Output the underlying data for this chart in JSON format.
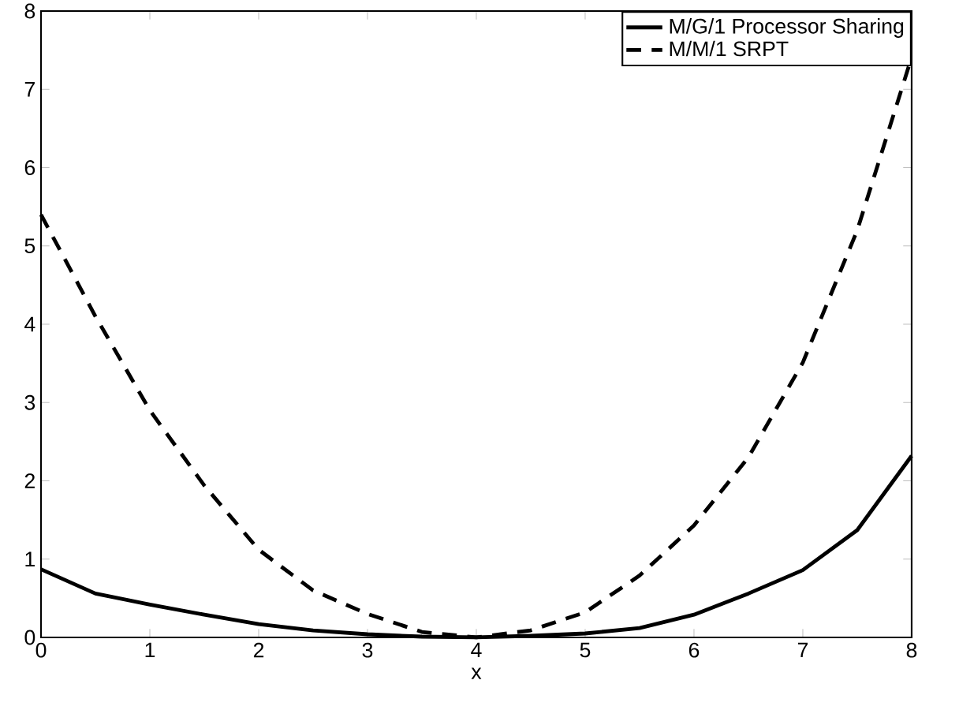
{
  "chart_data": {
    "type": "line",
    "xlabel": "x",
    "x": [
      0,
      0.5,
      1,
      1.5,
      2,
      2.5,
      3,
      3.5,
      4,
      4.5,
      5,
      5.5,
      6,
      6.5,
      7,
      7.5,
      8
    ],
    "series": [
      {
        "name": "M/G/1 Processor Sharing",
        "color": "#000000",
        "line_style": "solid",
        "values": [
          0.87,
          0.56,
          0.42,
          0.29,
          0.17,
          0.09,
          0.04,
          0.01,
          0,
          0.02,
          0.05,
          0.12,
          0.29,
          0.56,
          0.86,
          1.37,
          2.32
        ]
      },
      {
        "name": "M/M/1 SRPT",
        "color": "#000000",
        "line_style": "dashed",
        "values": [
          5.4,
          4.1,
          2.9,
          1.94,
          1.12,
          0.6,
          0.3,
          0.07,
          0,
          0.09,
          0.32,
          0.79,
          1.43,
          2.3,
          3.51,
          5.2,
          7.41
        ]
      }
    ],
    "xlim": [
      0,
      8
    ],
    "ylim": [
      0,
      8
    ],
    "xticks": [
      0,
      1,
      2,
      3,
      4,
      5,
      6,
      7,
      8
    ],
    "yticks": [
      0,
      1,
      2,
      3,
      4,
      5,
      6,
      7,
      8
    ],
    "legend": "top right",
    "grid": false,
    "marker": "none"
  }
}
